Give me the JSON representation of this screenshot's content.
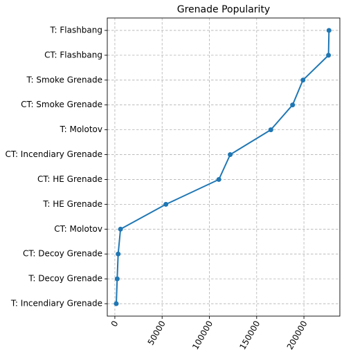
{
  "chart_data": {
    "type": "line",
    "title": "Grenade Popularity",
    "xlabel": "",
    "ylabel": "",
    "orientation": "horizontal",
    "grid": true,
    "xlim": [
      -8000,
      238000
    ],
    "x_ticks": [
      0,
      50000,
      100000,
      150000,
      200000
    ],
    "x_tick_labels": [
      "0",
      "50000",
      "100000",
      "150000",
      "200000"
    ],
    "x_tick_rotation": 60,
    "categories": [
      "T: Incendiary Grenade",
      "T: Decoy Grenade",
      "CT: Decoy Grenade",
      "CT: Molotov",
      "T: HE Grenade",
      "CT: HE Grenade",
      "CT: Incendiary Grenade",
      "T: Molotov",
      "CT: Smoke Grenade",
      "T: Smoke Grenade",
      "CT: Flashbang",
      "T: Flashbang"
    ],
    "series": [
      {
        "color": "#1f77b4",
        "values": [
          1500,
          2500,
          3500,
          6000,
          54000,
          110000,
          122000,
          165000,
          188000,
          199000,
          226000,
          226500
        ]
      }
    ]
  }
}
